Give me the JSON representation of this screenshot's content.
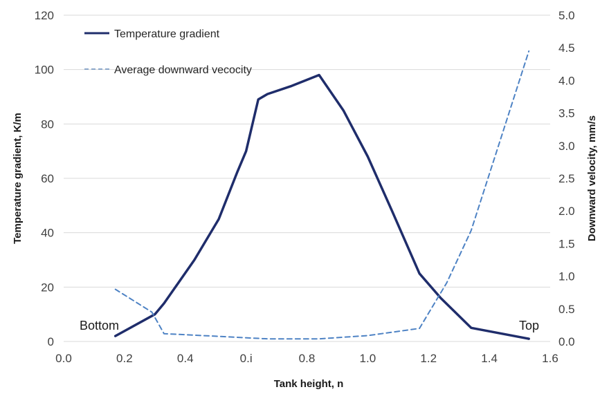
{
  "chart_data": {
    "type": "line",
    "xlabel": "Tank height, n",
    "ylabel": "Temperature gradient, K/m",
    "y2label": "Downward velocity, mm/s",
    "xlim": [
      0.0,
      1.6
    ],
    "ylim": [
      0,
      120
    ],
    "y2lim": [
      0.0,
      5.0
    ],
    "x_ticks": [
      "0.0",
      "0.2",
      "0.4",
      "0.i",
      "0.8",
      "1.0",
      "1.2",
      "1.4",
      "1.6"
    ],
    "y_ticks": [
      "0",
      "20",
      "40",
      "60",
      "80",
      "100",
      "120"
    ],
    "y2_ticks": [
      "0.0",
      "0.5",
      "1.0",
      "1.5",
      "2.0",
      "2.5",
      "3.0",
      "3.5",
      "4.0",
      "4.5",
      "5.0"
    ],
    "grid": "horizontal",
    "legend_position": "top-left",
    "annotations": {
      "bottom": "Bottom",
      "top": "Top"
    },
    "series": [
      {
        "name": "Temperature gradient",
        "axis": "left",
        "style": "solid",
        "color": "#1f2d6b",
        "x": [
          0.17,
          0.3,
          0.33,
          0.43,
          0.51,
          0.57,
          0.6,
          0.64,
          0.67,
          0.75,
          0.84,
          0.92,
          1.0,
          1.08,
          1.17,
          1.24,
          1.34,
          1.53
        ],
        "y": [
          2,
          10,
          14,
          30,
          45,
          62,
          70,
          89,
          91,
          94,
          98,
          85,
          68,
          48,
          25,
          16,
          5,
          1
        ]
      },
      {
        "name": "Average downward vecocity",
        "axis": "right",
        "style": "dashed",
        "color": "#4d82c4",
        "x": [
          0.17,
          0.29,
          0.33,
          0.5,
          0.67,
          0.84,
          1.0,
          1.17,
          1.26,
          1.34,
          1.43,
          1.53
        ],
        "y": [
          0.8,
          0.45,
          0.12,
          0.08,
          0.04,
          0.04,
          0.09,
          0.2,
          0.9,
          1.7,
          3.0,
          4.45
        ]
      }
    ]
  }
}
